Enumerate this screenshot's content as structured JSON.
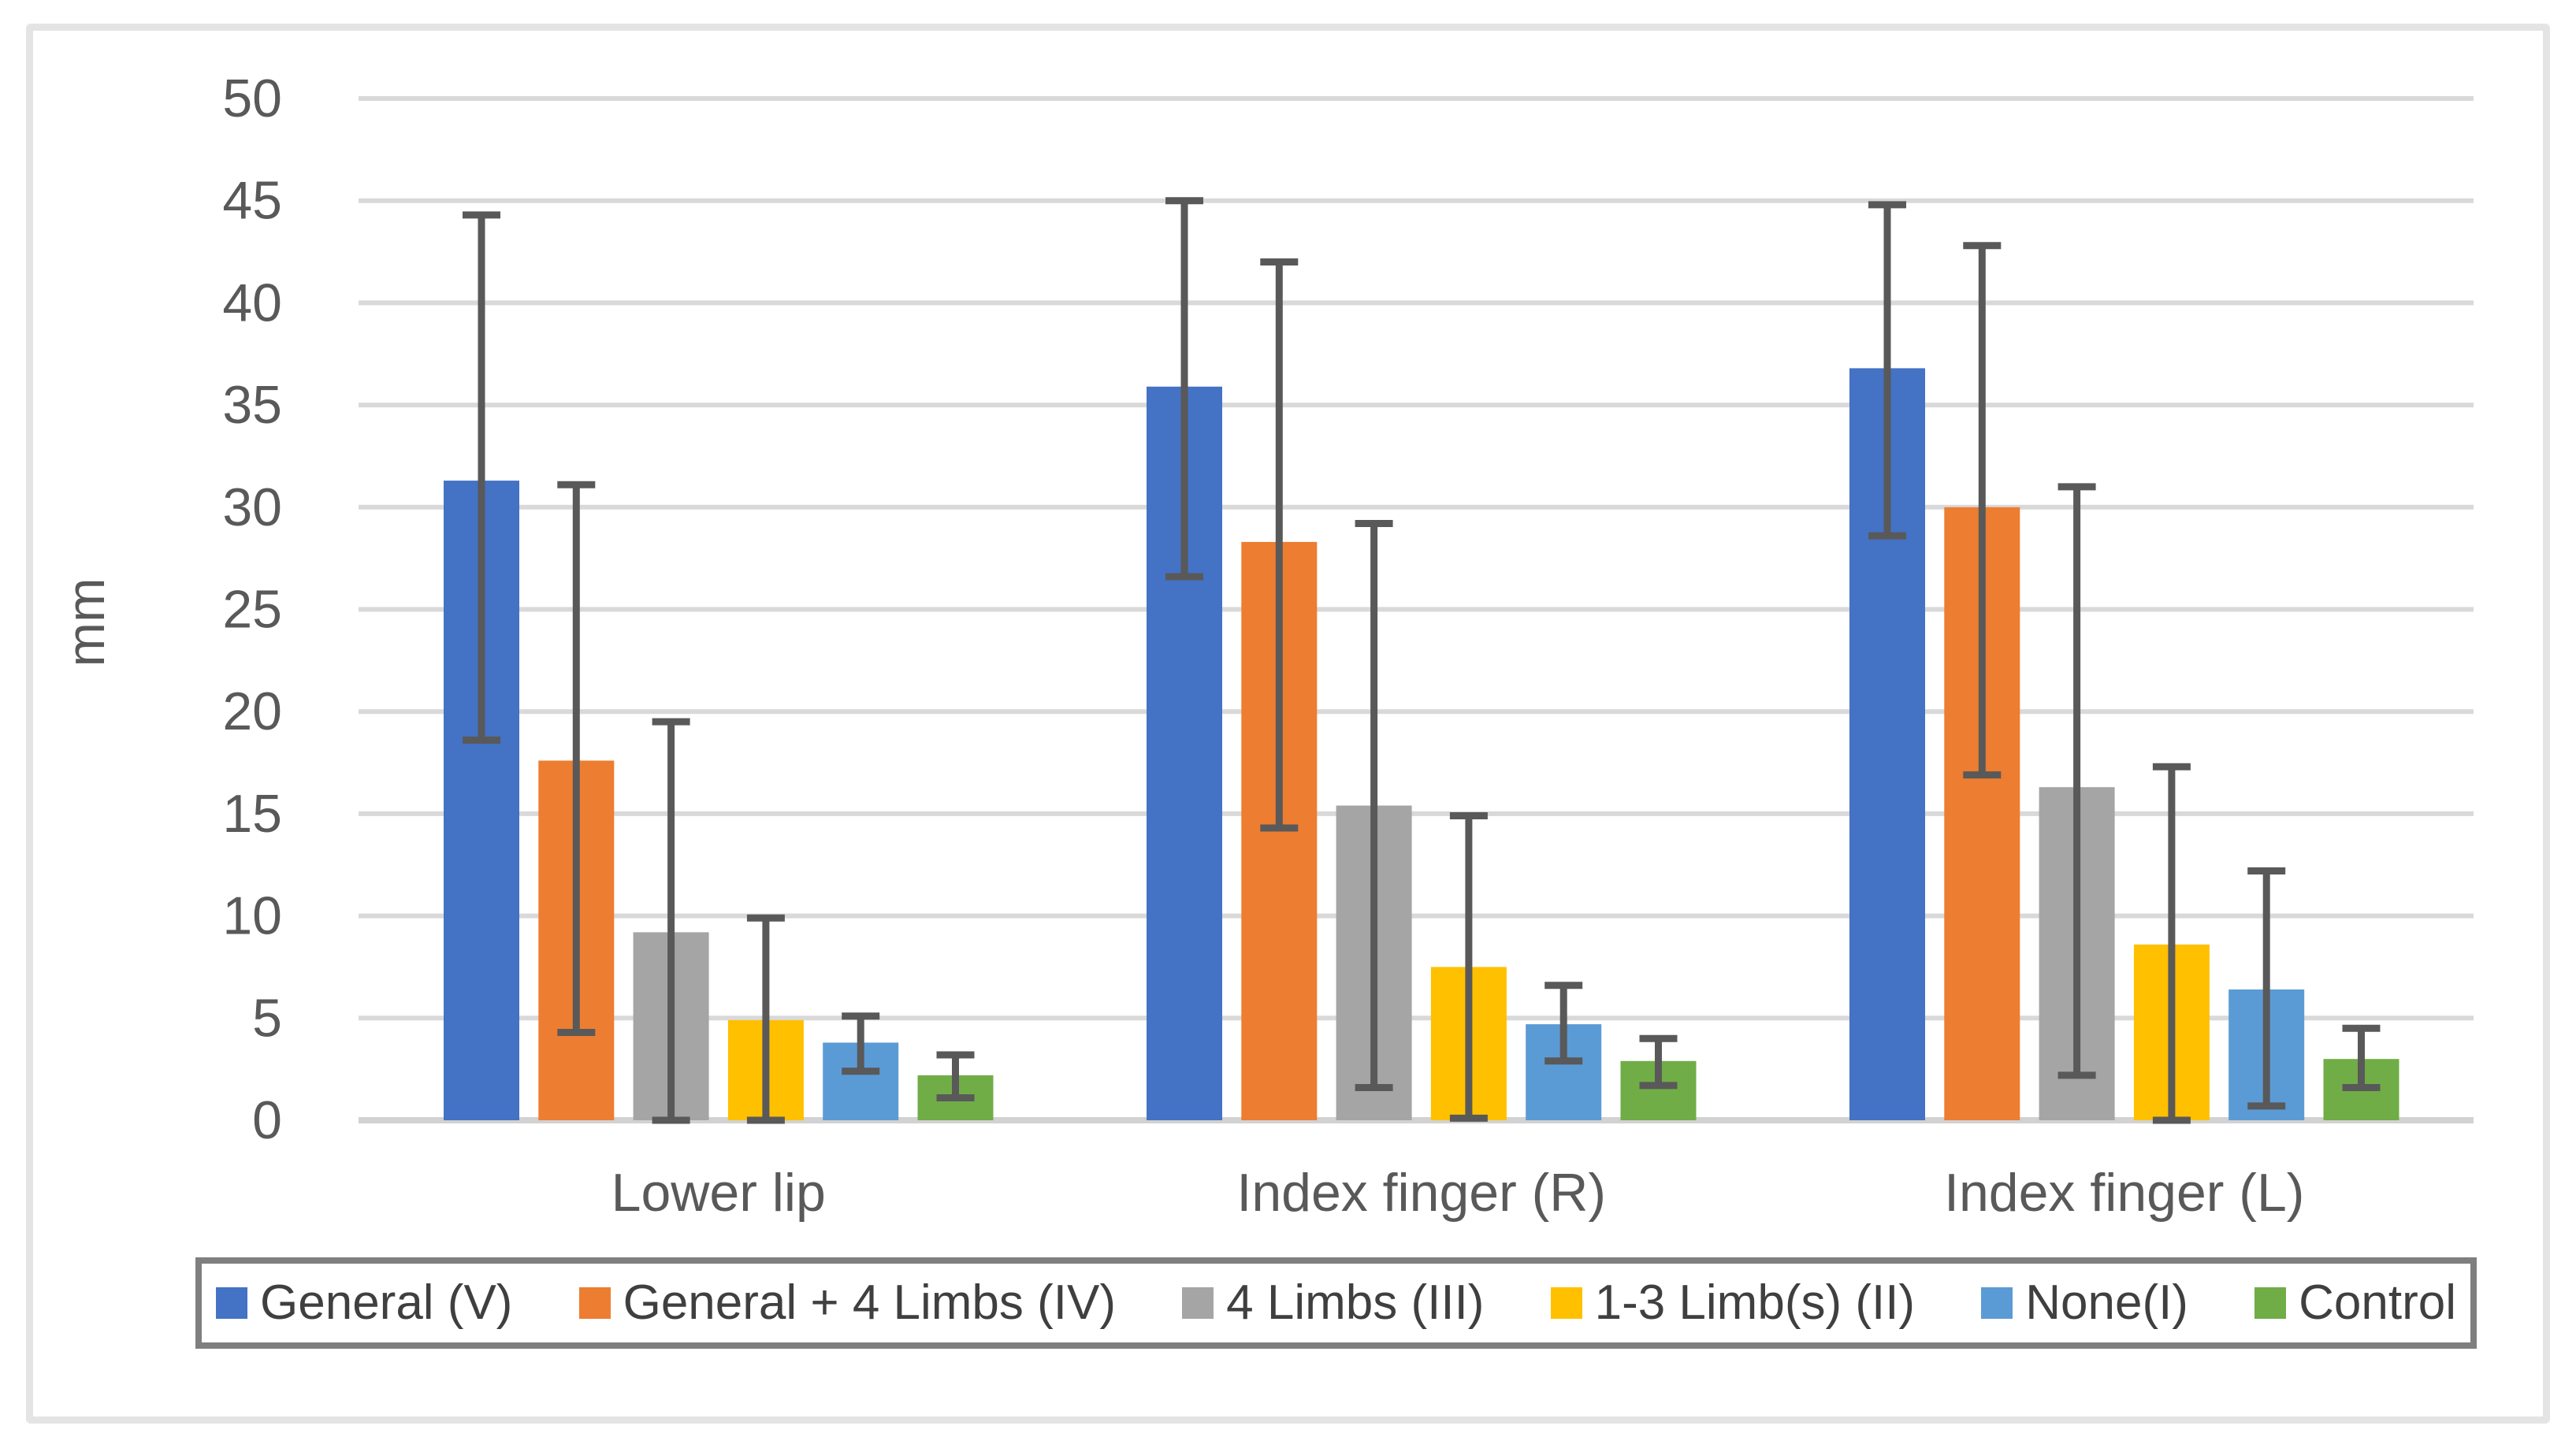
{
  "chart_data": {
    "type": "bar",
    "title": "",
    "ylabel": "mm",
    "ylim": [
      0,
      50
    ],
    "y_tick_step": 5,
    "y_ticks": [
      0,
      5,
      10,
      15,
      20,
      25,
      30,
      35,
      40,
      45,
      50
    ],
    "grid": true,
    "legend_position": "bottom",
    "categories": [
      "Lower lip",
      "Index finger (R)",
      "Index finger (L)"
    ],
    "series": [
      {
        "name": "General (V)",
        "color": "#4472C4",
        "values": [
          31.3,
          35.9,
          36.8
        ],
        "error_low": [
          18.6,
          26.6,
          28.6
        ],
        "error_high": [
          44.3,
          45.0,
          44.8
        ]
      },
      {
        "name": "General + 4 Limbs (IV)",
        "color": "#ED7D31",
        "values": [
          17.6,
          28.3,
          30.0
        ],
        "error_low": [
          4.3,
          14.3,
          16.9
        ],
        "error_high": [
          31.1,
          42.0,
          42.8
        ]
      },
      {
        "name": "4 Limbs (III)",
        "color": "#A5A5A5",
        "values": [
          9.2,
          15.4,
          16.3
        ],
        "error_low": [
          0,
          1.6,
          2.2
        ],
        "error_high": [
          19.5,
          29.2,
          31.0
        ]
      },
      {
        "name": "1-3 Limb(s) (II)",
        "color": "#FFC000",
        "values": [
          4.9,
          7.5,
          8.6
        ],
        "error_low": [
          0,
          0.1,
          0
        ],
        "error_high": [
          9.9,
          14.9,
          17.3
        ]
      },
      {
        "name": "None(I)",
        "color": "#5B9BD5",
        "values": [
          3.8,
          4.7,
          6.4
        ],
        "error_low": [
          2.4,
          2.9,
          0.7
        ],
        "error_high": [
          5.1,
          6.6,
          12.2
        ]
      },
      {
        "name": "Control",
        "color": "#70AD47",
        "values": [
          2.2,
          2.9,
          3.0
        ],
        "error_low": [
          1.1,
          1.7,
          1.6
        ],
        "error_high": [
          3.2,
          4.0,
          4.5
        ]
      }
    ],
    "error_bar_color": "#595959",
    "gridline_color": "#D9D9D9",
    "axis_line_color": "#D2D2D2",
    "text_color": "#595959"
  }
}
